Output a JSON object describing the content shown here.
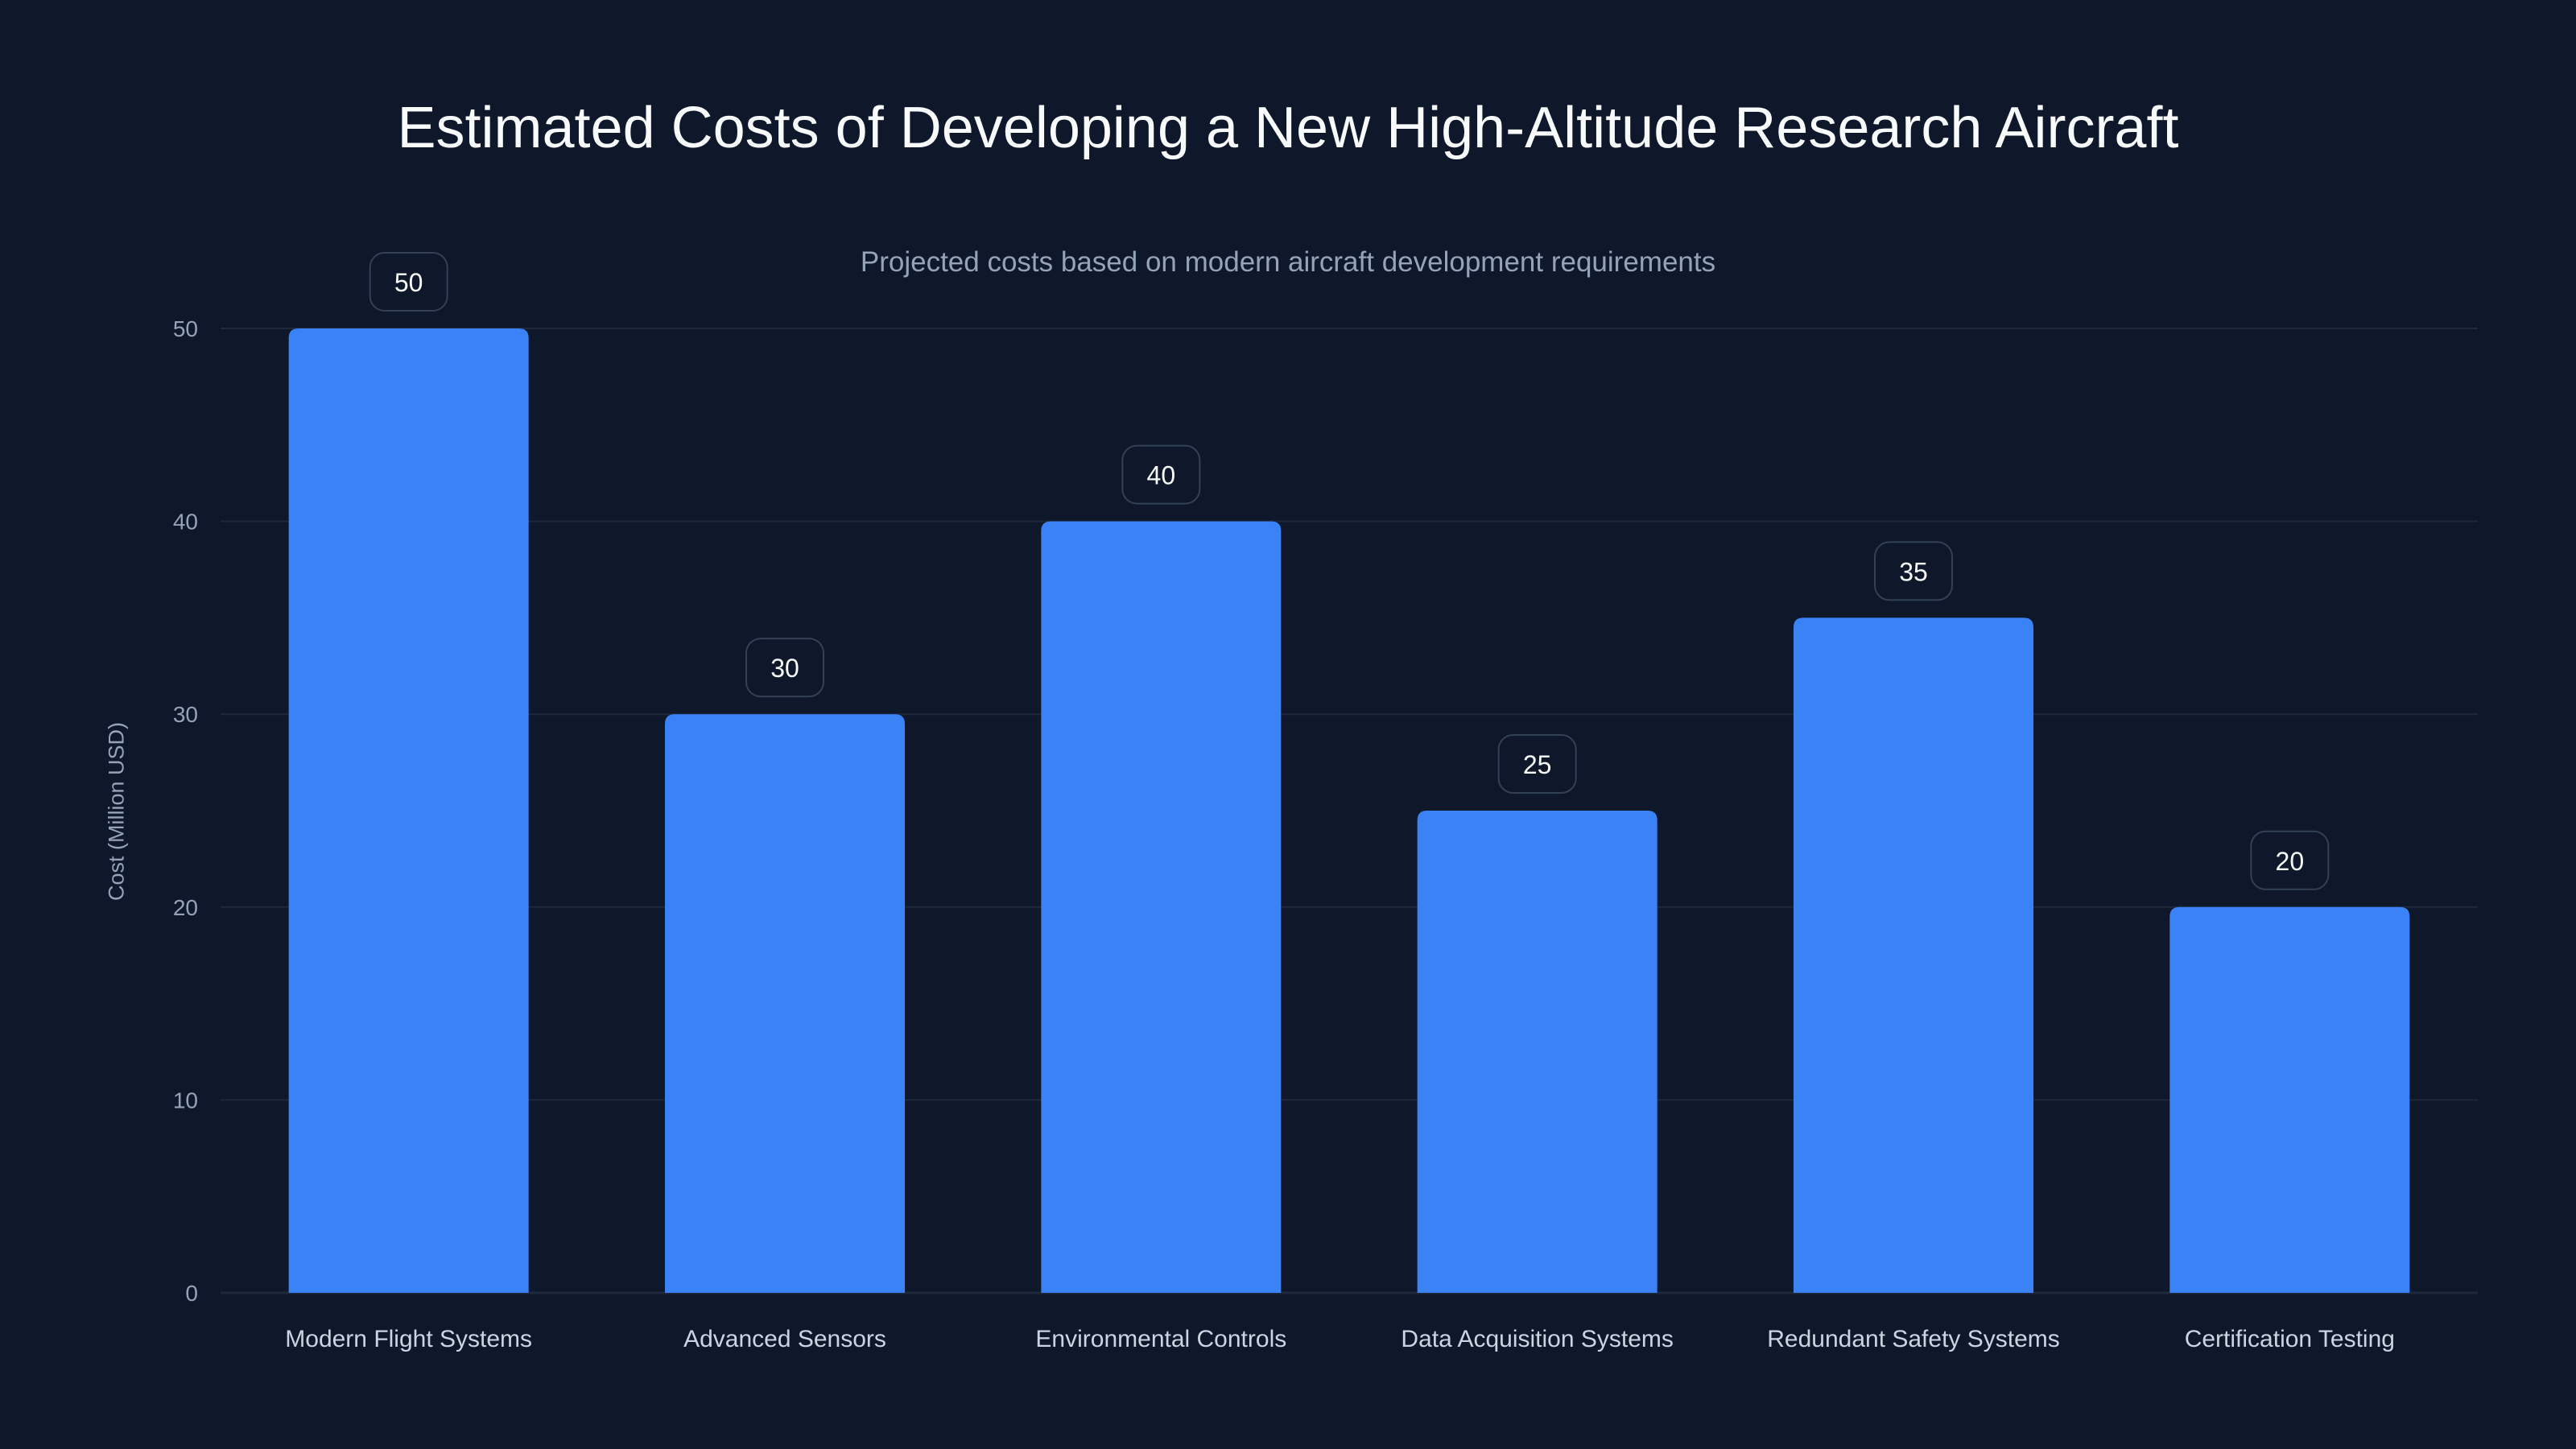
{
  "chart_data": {
    "type": "bar",
    "title": "Estimated Costs of Developing a New High-Altitude Research Aircraft",
    "subtitle": "Projected costs based on modern aircraft development requirements",
    "xlabel": "",
    "ylabel": "Cost (Million USD)",
    "categories": [
      "Modern Flight Systems",
      "Advanced Sensors",
      "Environmental Controls",
      "Data Acquisition Systems",
      "Redundant Safety Systems",
      "Certification Testing"
    ],
    "values": [
      50,
      30,
      40,
      25,
      35,
      20
    ],
    "ylim": [
      0,
      50
    ],
    "yticks": [
      0,
      10,
      20,
      30,
      40,
      50
    ],
    "grid": true,
    "data_labels": true,
    "colors": {
      "bar": "#3b82f6",
      "grid": "#1e293b",
      "background": "#0f172a"
    }
  }
}
